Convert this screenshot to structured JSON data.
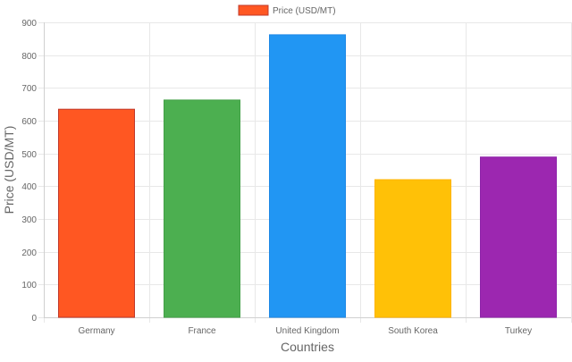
{
  "chart_data": {
    "type": "bar",
    "title": "",
    "xlabel": "Countries",
    "ylabel": "Price (USD/MT)",
    "categories": [
      "Germany",
      "France",
      "United Kingdom",
      "South Korea",
      "Turkey"
    ],
    "series": [
      {
        "name": "Price (USD/MT)",
        "values": [
          635,
          663,
          862,
          420,
          489
        ]
      }
    ],
    "bar_colors": [
      "#FF5722",
      "#4CAF50",
      "#2196F3",
      "#FFC107",
      "#9C27B0"
    ],
    "bar_border_colors": [
      "#C0392B",
      "#43A047",
      "#1E88E5",
      "#FFB300",
      "#8E24AA"
    ],
    "legend_color": "#FF5722",
    "legend_border_color": "#C0392B",
    "ylim": [
      0,
      900
    ],
    "yticks": [
      0,
      100,
      200,
      300,
      400,
      500,
      600,
      700,
      800,
      900
    ],
    "grid": true,
    "legend_position": "top"
  }
}
